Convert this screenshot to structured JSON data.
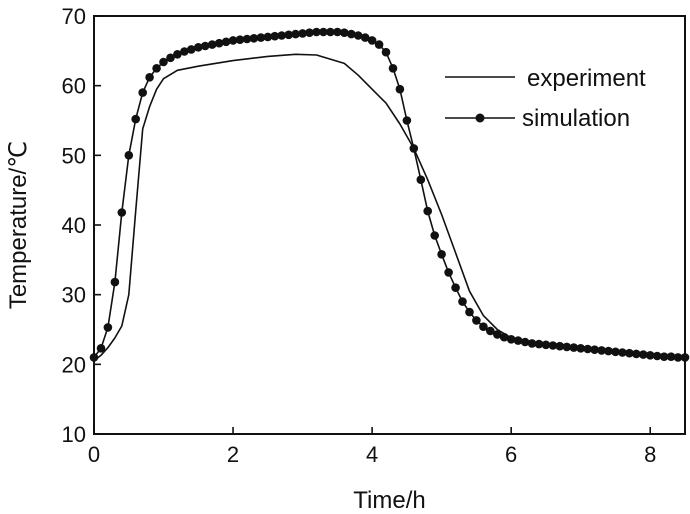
{
  "chart_data": {
    "type": "line",
    "xlabel": "Time/h",
    "ylabel": "Temperature/℃",
    "xlim": [
      0,
      8.5
    ],
    "ylim": [
      10,
      70
    ],
    "xticks": [
      0,
      2,
      4,
      6,
      8
    ],
    "yticks": [
      10,
      20,
      30,
      40,
      50,
      60,
      70
    ],
    "grid": false,
    "legend_position": "top-right",
    "series": [
      {
        "name": "experiment",
        "style": "line",
        "color": "#111111",
        "x": [
          0.0,
          0.1,
          0.2,
          0.3,
          0.4,
          0.5,
          0.6,
          0.7,
          0.8,
          0.9,
          1.0,
          1.2,
          1.5,
          2.0,
          2.5,
          2.9,
          3.2,
          3.6,
          3.8,
          4.0,
          4.2,
          4.4,
          4.6,
          4.8,
          5.0,
          5.2,
          5.4,
          5.6,
          5.8,
          6.0,
          6.3,
          6.6,
          7.0,
          7.5,
          8.0,
          8.5
        ],
        "y": [
          20.5,
          21.3,
          22.4,
          23.8,
          25.5,
          30.0,
          42.0,
          53.8,
          57.0,
          59.5,
          61.0,
          62.2,
          62.8,
          63.6,
          64.2,
          64.5,
          64.4,
          63.2,
          61.5,
          59.5,
          57.5,
          54.5,
          51.0,
          46.5,
          41.5,
          36.0,
          30.5,
          27.0,
          25.0,
          23.8,
          23.2,
          22.8,
          22.3,
          21.8,
          21.3,
          20.9
        ]
      },
      {
        "name": "simulation",
        "style": "line-marker",
        "color": "#111111",
        "x": [
          0.0,
          0.1,
          0.2,
          0.3,
          0.4,
          0.5,
          0.6,
          0.7,
          0.8,
          0.9,
          1.0,
          1.1,
          1.2,
          1.3,
          1.4,
          1.5,
          1.6,
          1.7,
          1.8,
          1.9,
          2.0,
          2.1,
          2.2,
          2.3,
          2.4,
          2.5,
          2.6,
          2.7,
          2.8,
          2.9,
          3.0,
          3.1,
          3.2,
          3.3,
          3.4,
          3.5,
          3.6,
          3.7,
          3.8,
          3.9,
          4.0,
          4.1,
          4.2,
          4.3,
          4.4,
          4.5,
          4.6,
          4.7,
          4.8,
          4.9,
          5.0,
          5.1,
          5.2,
          5.3,
          5.4,
          5.5,
          5.6,
          5.7,
          5.8,
          5.9,
          6.0,
          6.1,
          6.2,
          6.3,
          6.4,
          6.5,
          6.6,
          6.7,
          6.8,
          6.9,
          7.0,
          7.1,
          7.2,
          7.3,
          7.4,
          7.5,
          7.6,
          7.7,
          7.8,
          7.9,
          8.0,
          8.1,
          8.2,
          8.3,
          8.4,
          8.5
        ],
        "y": [
          21.0,
          22.3,
          25.3,
          31.8,
          41.8,
          50.0,
          55.2,
          59.0,
          61.2,
          62.5,
          63.4,
          64.0,
          64.5,
          64.9,
          65.2,
          65.5,
          65.7,
          65.9,
          66.1,
          66.3,
          66.5,
          66.6,
          66.7,
          66.8,
          66.9,
          67.0,
          67.1,
          67.2,
          67.3,
          67.4,
          67.5,
          67.6,
          67.7,
          67.7,
          67.7,
          67.7,
          67.6,
          67.4,
          67.2,
          66.9,
          66.5,
          65.9,
          64.8,
          62.5,
          59.5,
          55.0,
          51.0,
          46.5,
          42.0,
          38.5,
          35.8,
          33.2,
          31.0,
          29.0,
          27.5,
          26.3,
          25.4,
          24.8,
          24.3,
          23.9,
          23.6,
          23.4,
          23.2,
          23.0,
          22.9,
          22.8,
          22.7,
          22.6,
          22.5,
          22.4,
          22.3,
          22.2,
          22.1,
          22.0,
          21.9,
          21.8,
          21.7,
          21.6,
          21.5,
          21.4,
          21.3,
          21.2,
          21.1,
          21.1,
          21.0,
          21.0
        ]
      }
    ]
  }
}
